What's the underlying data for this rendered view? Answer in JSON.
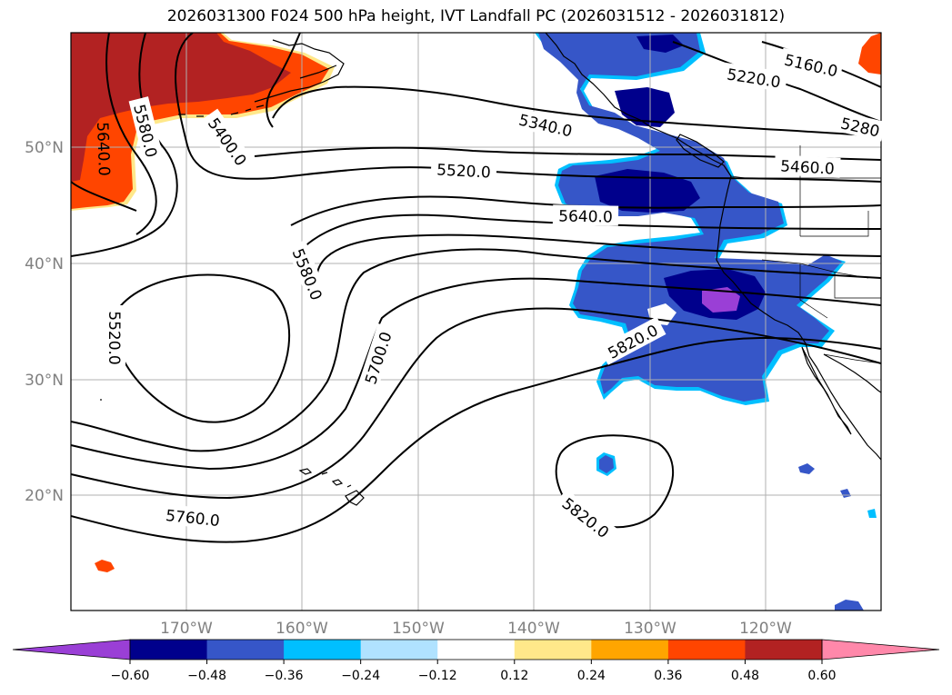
{
  "title": "2026031300 F024 500 hPa height, IVT Landfall PC (2026031512 - 2026031812)",
  "lat_labels": [
    "50°N",
    "40°N",
    "30°N",
    "20°N"
  ],
  "lon_labels": [
    "170°W",
    "160°W",
    "150°W",
    "140°W",
    "130°W",
    "120°W"
  ],
  "contour_labels": [
    "5160.0",
    "5220.0",
    "5280",
    "5340.0",
    "5400.0",
    "5460.0",
    "5520.0",
    "5640.0",
    "5580.0",
    "5640.0",
    "5520.0",
    "5580.0",
    "5700.0",
    "5820.0",
    "5760.0",
    "5820.0"
  ],
  "colorbar": {
    "ticks": [
      "−0.60",
      "−0.48",
      "−0.36",
      "−0.24",
      "−0.12",
      "0.12",
      "0.24",
      "0.36",
      "0.48",
      "0.60"
    ],
    "colors": [
      "#9a3fd6",
      "#00008c",
      "#3656c8",
      "#00bfff",
      "#b0e2ff",
      "#ffffff",
      "#ffe88a",
      "#ffa500",
      "#ff4500",
      "#b22222",
      "#ff88aa"
    ]
  },
  "fill_colors": {
    "neg_strong": "#00008c",
    "neg_mid": "#3656c8",
    "neg_light": "#00bfff",
    "neg_pale": "#b0e2ff",
    "neg_extreme": "#9a3fd6",
    "pos_strong": "#b22222",
    "pos_mid": "#ff4500",
    "pos_light": "#ffa500",
    "pos_pale": "#ffe88a"
  }
}
